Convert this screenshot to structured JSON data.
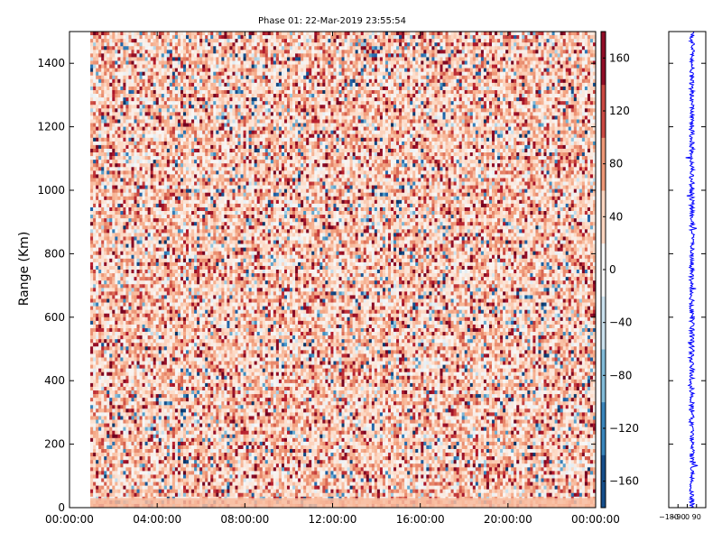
{
  "chart_data": [
    {
      "type": "heatmap",
      "title": "Phase 01: 22-Mar-2019 23:55:54",
      "xlabel": "",
      "ylabel": "Range (Km)",
      "x_tick_labels": [
        "00:00:00",
        "04:00:00",
        "08:00:00",
        "12:00:00",
        "16:00:00",
        "20:00:00",
        "00:00:00"
      ],
      "x_ticks_hours": [
        0,
        4,
        8,
        12,
        16,
        20,
        24
      ],
      "xlim_hours": [
        0,
        24
      ],
      "data_xlim_hours": [
        0.95,
        24
      ],
      "y_ticks": [
        0,
        200,
        400,
        600,
        800,
        1000,
        1200,
        1400
      ],
      "ylim": [
        0,
        1500
      ],
      "value_range": [
        -180,
        180
      ],
      "dominant_value_range": [
        0,
        90
      ],
      "colormap": "RdBu_r",
      "colorbar": {
        "ticks": [
          160,
          120,
          80,
          40,
          0,
          -40,
          -80,
          -120,
          -160
        ],
        "tick_labels": [
          "160",
          "120",
          "80",
          "40",
          "0",
          "−40",
          "−80",
          "−120",
          "−160"
        ],
        "range": [
          -180,
          180
        ]
      }
    },
    {
      "type": "line",
      "title": "",
      "xlabel": "",
      "ylabel": "",
      "x_tick_labels": [
        "−180",
        "−90",
        "0",
        "90"
      ],
      "x_ticks": [
        -180,
        -90,
        0,
        90
      ],
      "xlim": [
        -180,
        180
      ],
      "ylim": [
        0,
        1500
      ],
      "y_ticks": [
        0,
        200,
        400,
        600,
        800,
        1000,
        1200,
        1400
      ],
      "series_color": "#0000ff",
      "profile_center_value": 45,
      "profile_spread": 25
    }
  ]
}
